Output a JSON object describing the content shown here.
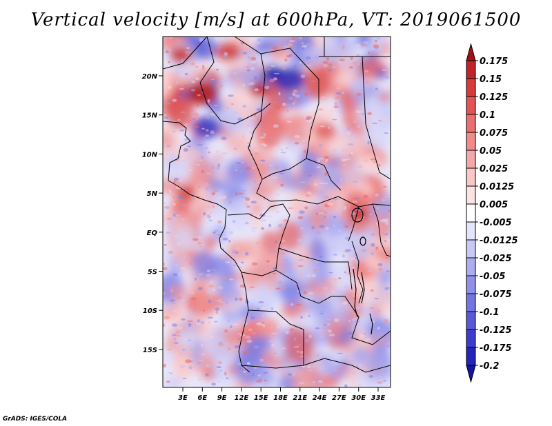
{
  "title": "Vertical velocity [m/s] at 600hPa, VT: 2019061500",
  "credit": "GrADS: IGES/COLA",
  "lon_ticks": [
    "3E",
    "6E",
    "9E",
    "12E",
    "15E",
    "18E",
    "21E",
    "24E",
    "27E",
    "30E",
    "33E"
  ],
  "lat_ticks": [
    "20N",
    "15N",
    "10N",
    "5N",
    "EQ",
    "5S",
    "10S",
    "15S"
  ],
  "colorbar": {
    "labels": [
      "0.175",
      "0.15",
      "0.125",
      "0.1",
      "0.075",
      "0.05",
      "0.025",
      "0.0125",
      "0.005",
      "-0.005",
      "-0.0125",
      "-0.025",
      "-0.05",
      "-0.075",
      "-0.1",
      "-0.125",
      "-0.175",
      "-0.2"
    ],
    "colors": [
      "#a50f15",
      "#c0232a",
      "#d63a3a",
      "#e45454",
      "#ec6e6e",
      "#f28a8a",
      "#f6a8a8",
      "#fac6c6",
      "#fde2e2",
      "#ffffff",
      "#e4e4fb",
      "#c8c8f6",
      "#acacf0",
      "#9090ea",
      "#7474e2",
      "#5858d8",
      "#3c3ccc",
      "#2424b8",
      "#1414a0"
    ]
  }
}
